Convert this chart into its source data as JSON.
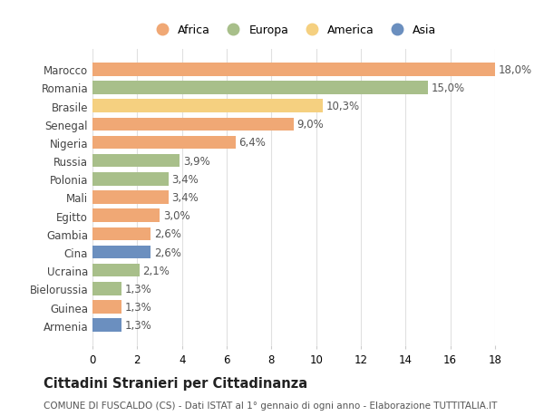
{
  "countries": [
    "Marocco",
    "Romania",
    "Brasile",
    "Senegal",
    "Nigeria",
    "Russia",
    "Polonia",
    "Mali",
    "Egitto",
    "Gambia",
    "Cina",
    "Ucraina",
    "Bielorussia",
    "Guinea",
    "Armenia"
  ],
  "values": [
    18.0,
    15.0,
    10.3,
    9.0,
    6.4,
    3.9,
    3.4,
    3.4,
    3.0,
    2.6,
    2.6,
    2.1,
    1.3,
    1.3,
    1.3
  ],
  "labels": [
    "18,0%",
    "15,0%",
    "10,3%",
    "9,0%",
    "6,4%",
    "3,9%",
    "3,4%",
    "3,4%",
    "3,0%",
    "2,6%",
    "2,6%",
    "2,1%",
    "1,3%",
    "1,3%",
    "1,3%"
  ],
  "colors": [
    "#F0A875",
    "#A8BF8A",
    "#F5D080",
    "#F0A875",
    "#F0A875",
    "#A8BF8A",
    "#A8BF8A",
    "#F0A875",
    "#F0A875",
    "#F0A875",
    "#6B8FBF",
    "#A8BF8A",
    "#A8BF8A",
    "#F0A875",
    "#6B8FBF"
  ],
  "legend_labels": [
    "Africa",
    "Europa",
    "America",
    "Asia"
  ],
  "legend_colors": [
    "#F0A875",
    "#A8BF8A",
    "#F5D080",
    "#6B8FBF"
  ],
  "title": "Cittadini Stranieri per Cittadinanza",
  "subtitle": "COMUNE DI FUSCALDO (CS) - Dati ISTAT al 1° gennaio di ogni anno - Elaborazione TUTTITALIA.IT",
  "xlim": [
    0,
    18
  ],
  "xticks": [
    0,
    2,
    4,
    6,
    8,
    10,
    12,
    14,
    16,
    18
  ],
  "bg_color": "#ffffff",
  "grid_color": "#e0e0e0",
  "bar_height": 0.72,
  "label_fontsize": 8.5,
  "tick_fontsize": 8.5,
  "title_fontsize": 10.5,
  "subtitle_fontsize": 7.5
}
